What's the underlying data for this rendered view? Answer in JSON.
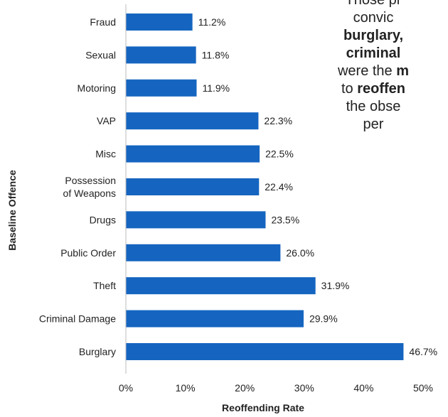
{
  "chart_data": {
    "type": "bar",
    "orientation": "horizontal",
    "ylabel": "Baseline Offence",
    "xlabel": "Reoffending Rate",
    "xlim": [
      0,
      50
    ],
    "x_ticks": [
      "0%",
      "10%",
      "20%",
      "30%",
      "40%",
      "50%"
    ],
    "categories": [
      "Fraud",
      "Sexual",
      "Motoring",
      "VAP",
      "Misc",
      "Possession of Weapons",
      "Drugs",
      "Public Order",
      "Theft",
      "Criminal Damage",
      "Burglary"
    ],
    "category_lines": [
      [
        "Fraud"
      ],
      [
        "Sexual"
      ],
      [
        "Motoring"
      ],
      [
        "VAP"
      ],
      [
        "Misc"
      ],
      [
        "Possession",
        "of Weapons"
      ],
      [
        "Drugs"
      ],
      [
        "Public Order"
      ],
      [
        "Theft"
      ],
      [
        "Criminal Damage"
      ],
      [
        "Burglary"
      ]
    ],
    "values": [
      11.2,
      11.8,
      11.9,
      22.3,
      22.5,
      22.4,
      23.5,
      26.0,
      31.9,
      29.9,
      46.7
    ],
    "value_labels": [
      "11.2%",
      "11.8%",
      "11.9%",
      "22.3%",
      "22.5%",
      "22.4%",
      "23.5%",
      "26.0%",
      "31.9%",
      "29.9%",
      "46.7%"
    ],
    "bar_color": "#1565c0",
    "grid": false,
    "legend": "none"
  },
  "annotation": {
    "lines": [
      [
        {
          "text": "Those pr",
          "bold": false
        }
      ],
      [
        {
          "text": "convic",
          "bold": false
        }
      ],
      [
        {
          "text": "burglary,",
          "bold": true
        }
      ],
      [
        {
          "text": "criminal ",
          "bold": true
        }
      ],
      [
        {
          "text": "were the ",
          "bold": false
        },
        {
          "text": "m",
          "bold": true
        }
      ],
      [
        {
          "text": "to ",
          "bold": false
        },
        {
          "text": "reoffen",
          "bold": true
        }
      ],
      [
        {
          "text": "the obse",
          "bold": false
        }
      ],
      [
        {
          "text": "per",
          "bold": false
        }
      ]
    ]
  }
}
